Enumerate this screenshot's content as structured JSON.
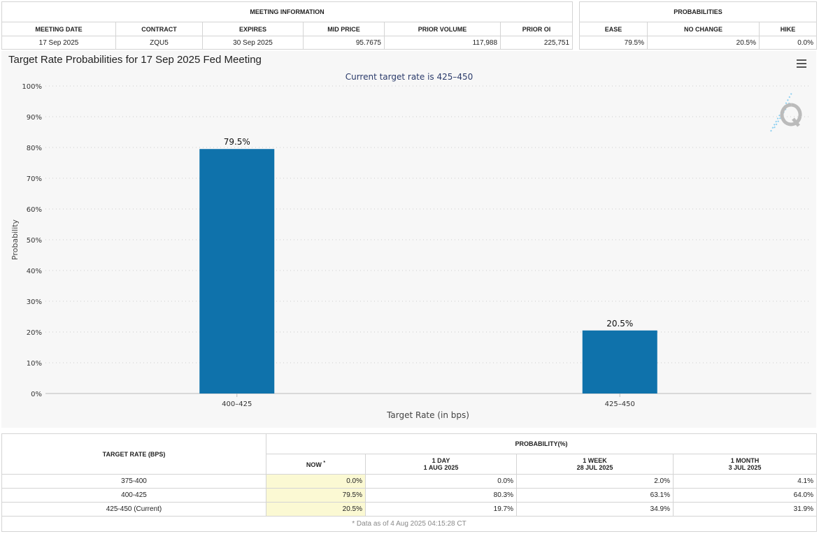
{
  "meeting_information": {
    "title": "MEETING INFORMATION",
    "columns": [
      "MEETING DATE",
      "CONTRACT",
      "EXPIRES",
      "MID PRICE",
      "PRIOR VOLUME",
      "PRIOR OI"
    ],
    "rows": [
      [
        "17 Sep 2025",
        "ZQU5",
        "30 Sep 2025",
        "95.7675",
        "117,988",
        "225,751"
      ]
    ]
  },
  "probabilities": {
    "title": "PROBABILITIES",
    "columns": [
      "EASE",
      "NO CHANGE",
      "HIKE"
    ],
    "rows": [
      [
        "79.5%",
        "20.5%",
        "0.0%"
      ]
    ]
  },
  "chart_data": {
    "type": "bar",
    "title": "Target Rate Probabilities for 17 Sep 2025 Fed Meeting",
    "subtitle": "Current target rate is 425–450",
    "x_label": "Target Rate (in bps)",
    "y_label": "Probability",
    "categories": [
      "400–425",
      "425–450"
    ],
    "values": [
      79.5,
      20.5
    ],
    "value_labels": [
      "79.5%",
      "20.5%"
    ],
    "color": "#0f72ab",
    "ylim": [
      0,
      100
    ],
    "yticks": [
      {
        "value": 0,
        "label": "0%"
      },
      {
        "value": 10,
        "label": "10%"
      },
      {
        "value": 20,
        "label": "20%"
      },
      {
        "value": 30,
        "label": "30%"
      },
      {
        "value": 40,
        "label": "40%"
      },
      {
        "value": 50,
        "label": "50%"
      },
      {
        "value": 60,
        "label": "60%"
      },
      {
        "value": 70,
        "label": "70%"
      },
      {
        "value": 80,
        "label": "80%"
      },
      {
        "value": 90,
        "label": "90%"
      },
      {
        "value": 100,
        "label": "100%"
      }
    ],
    "grid": true
  },
  "history_table": {
    "row_header": "TARGET RATE (BPS)",
    "title": "PROBABILITY(%)",
    "columns": [
      {
        "label": "NOW",
        "note": "*"
      },
      {
        "label": "1 DAY",
        "date": "1 AUG 2025"
      },
      {
        "label": "1 WEEK",
        "date": "28 JUL 2025"
      },
      {
        "label": "1 MONTH",
        "date": "3 JUL 2025"
      }
    ],
    "rows": [
      [
        "375-400",
        "0.0%",
        "0.0%",
        "2.0%",
        "4.1%"
      ],
      [
        "400-425",
        "79.5%",
        "80.3%",
        "63.1%",
        "64.0%"
      ],
      [
        "425-450 (Current)",
        "20.5%",
        "19.7%",
        "34.9%",
        "31.9%"
      ]
    ],
    "footnote": "* Data as of 4 Aug 2025 04:15:28 CT"
  }
}
